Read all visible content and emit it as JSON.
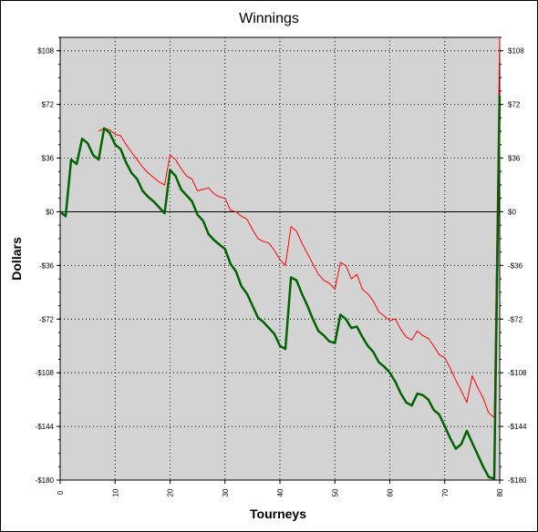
{
  "chart_data": {
    "type": "line",
    "title": "Winnings",
    "xlabel": "Tourneys",
    "ylabel": "Dollars",
    "xlim": [
      0,
      80
    ],
    "ylim": [
      -180,
      117
    ],
    "grid": true,
    "colors": {
      "plot_bg": "#d3d3d3",
      "series_green": "#006400",
      "series_red": "#ff0000"
    },
    "x_ticks": [
      {
        "value": 0,
        "label": "0"
      },
      {
        "value": 10,
        "label": "10"
      },
      {
        "value": 20,
        "label": "20"
      },
      {
        "value": 30,
        "label": "30"
      },
      {
        "value": 40,
        "label": "40"
      },
      {
        "value": 50,
        "label": "50"
      },
      {
        "value": 60,
        "label": "60"
      },
      {
        "value": 70,
        "label": "70"
      },
      {
        "value": 80,
        "label": "80"
      }
    ],
    "y_ticks": [
      {
        "value": 108,
        "label": "$108"
      },
      {
        "value": 72,
        "label": "$72"
      },
      {
        "value": 36,
        "label": "$36"
      },
      {
        "value": 0,
        "label": "$0"
      },
      {
        "value": -36,
        "label": "-$36"
      },
      {
        "value": -72,
        "label": "-$72"
      },
      {
        "value": -108,
        "label": "-$108"
      },
      {
        "value": -144,
        "label": "-$144"
      },
      {
        "value": -180,
        "label": "-$180"
      }
    ],
    "series": [
      {
        "color": "#006400",
        "x": [
          0,
          1,
          2,
          3,
          4,
          5,
          6,
          7,
          8,
          9,
          10,
          11,
          12,
          13,
          14,
          15,
          16,
          17,
          18,
          19,
          20,
          21,
          22,
          23,
          24,
          25,
          26,
          27,
          28,
          29,
          30,
          31,
          32,
          33,
          34,
          35,
          36,
          37,
          38,
          39,
          40,
          41,
          42,
          43,
          44,
          45,
          46,
          47,
          48,
          49,
          50,
          51,
          52,
          53,
          54,
          55,
          56,
          57,
          58,
          59,
          60,
          61,
          62,
          63,
          64,
          65,
          66,
          67,
          68,
          69,
          70,
          71,
          72,
          73,
          74,
          75,
          76,
          77,
          78,
          79,
          80
        ],
        "values": [
          0,
          -3,
          35,
          32,
          49,
          46,
          38,
          35,
          56,
          53,
          45,
          42,
          33,
          26,
          22,
          14,
          10,
          7,
          3,
          -1,
          28,
          24,
          15,
          11,
          7,
          -2,
          -6,
          -15,
          -19,
          -22,
          -25,
          -35,
          -40,
          -50,
          -55,
          -63,
          -71,
          -74,
          -78,
          -82,
          -90,
          -92,
          -44,
          -46,
          -55,
          -63,
          -72,
          -80,
          -83,
          -87,
          -88,
          -69,
          -72,
          -78,
          -77,
          -84,
          -90,
          -94,
          -101,
          -104,
          -108,
          -114,
          -122,
          -128,
          -130,
          -122,
          -123,
          -126,
          -133,
          -136,
          -144,
          -152,
          -159,
          -156,
          -147,
          -155,
          -163,
          -171,
          -178,
          -179,
          78
        ]
      },
      {
        "color": "#ff0000",
        "x": [
          7,
          8,
          9,
          10,
          11,
          12,
          13,
          14,
          15,
          16,
          17,
          18,
          19,
          20,
          21,
          22,
          23,
          24,
          25,
          26,
          27,
          28,
          29,
          30,
          31,
          32,
          33,
          34,
          35,
          36,
          37,
          38,
          39,
          40,
          41,
          42,
          43,
          44,
          45,
          46,
          47,
          48,
          49,
          50,
          51,
          52,
          53,
          54,
          55,
          56,
          57,
          58,
          59,
          60,
          61,
          62,
          63,
          64,
          65,
          66,
          67,
          68,
          69,
          70,
          71,
          72,
          73,
          74,
          75,
          76,
          77,
          78,
          79,
          80
        ],
        "values": [
          54,
          56,
          55,
          52,
          51,
          45,
          40,
          35,
          30,
          26,
          23,
          20,
          18,
          38,
          35,
          29,
          24,
          22,
          14,
          15,
          16,
          12,
          10,
          9,
          1,
          0,
          -3,
          -5,
          -12,
          -18,
          -20,
          -21,
          -26,
          -32,
          -36,
          -10,
          -13,
          -21,
          -28,
          -35,
          -42,
          -46,
          -48,
          -52,
          -34,
          -36,
          -45,
          -42,
          -52,
          -55,
          -60,
          -67,
          -70,
          -73,
          -72,
          -79,
          -84,
          -86,
          -80,
          -83,
          -85,
          -90,
          -96,
          -98,
          -105,
          -113,
          -120,
          -128,
          -110,
          -118,
          -125,
          -135,
          -138,
          117
        ]
      }
    ]
  }
}
